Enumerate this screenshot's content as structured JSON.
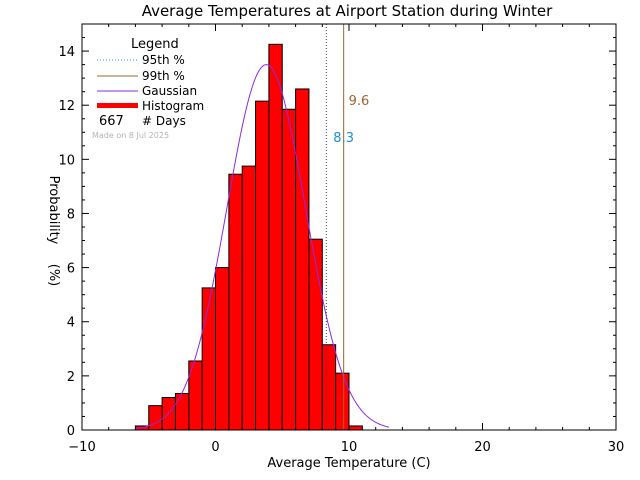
{
  "chart_data": {
    "type": "bar",
    "title": "Average Temperatures at Airport Station during Winter",
    "xlabel": "Average Temperature (C)",
    "ylabel_top": "Probability",
    "ylabel_unit": "(%)",
    "xlim": [
      -10,
      30
    ],
    "ylim": [
      0,
      15
    ],
    "xticks": [
      -10,
      0,
      10,
      20,
      30
    ],
    "yticks": [
      0,
      2,
      4,
      6,
      8,
      10,
      12,
      14
    ],
    "grid": false,
    "legend_position": "top-left",
    "histogram": {
      "name": "Histogram",
      "bin_edges": [
        -6,
        -5,
        -4,
        -3,
        -2,
        -1,
        0,
        1,
        2,
        3,
        4,
        5,
        6,
        7,
        8,
        9,
        10,
        11
      ],
      "values": [
        0.15,
        0.9,
        1.2,
        1.35,
        2.55,
        5.25,
        6.0,
        9.45,
        9.75,
        12.15,
        14.25,
        11.85,
        12.6,
        7.05,
        3.15,
        2.1,
        0.15
      ]
    },
    "gaussian": {
      "name": "Gaussian",
      "mean": 3.8,
      "sigma": 2.95,
      "peak": 13.5,
      "x_range": [
        -6,
        13
      ]
    },
    "percentiles": [
      {
        "name": "95th %",
        "value": 8.3,
        "label": "8.3",
        "color": "#1f8fd0"
      },
      {
        "name": "99th %",
        "value": 9.6,
        "label": "9.6",
        "color": "#a0642d"
      }
    ],
    "count": {
      "value": "667",
      "label": "# Days"
    },
    "legend": {
      "title": "Legend",
      "entries": [
        {
          "label": "95th %",
          "style": "dotted",
          "color": "#1f8fd0"
        },
        {
          "label": "99th %",
          "style": "solid",
          "color": "#a0642d"
        },
        {
          "label": "Gaussian",
          "style": "solid",
          "color": "#8a2be2"
        },
        {
          "label": "Histogram",
          "style": "thick",
          "color": "#ff0000"
        }
      ]
    },
    "watermark": "Made on 8 Jul 2025",
    "colors": {
      "bar_fill": "#ff0000",
      "bar_edge": "#000000",
      "gaussian": "#8a2be2"
    }
  }
}
